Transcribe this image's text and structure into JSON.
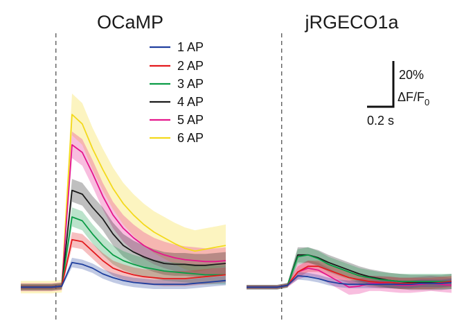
{
  "chart_data": [
    {
      "type": "line",
      "title": "OCaMP",
      "xlabel": "",
      "ylabel": "",
      "x": [
        0,
        0.07,
        0.14,
        0.21,
        0.28,
        0.35,
        0.42,
        0.49,
        0.56,
        0.63,
        0.7,
        0.77,
        0.84,
        0.91,
        0.98,
        1.05,
        1.12,
        1.19,
        1.26,
        1.33,
        1.4
      ],
      "xlim": [
        0,
        1.4
      ],
      "ylim": [
        -5,
        125
      ],
      "stimulus_x": 0.24,
      "series": [
        {
          "name": "1 AP",
          "color": "#1f3f9e",
          "band": 2.5,
          "values": [
            0,
            0,
            0,
            0,
            0.5,
            13,
            12,
            10,
            7,
            5,
            3.5,
            2.5,
            2,
            1.5,
            1.5,
            1.5,
            1.5,
            2,
            2.5,
            3,
            3.5
          ]
        },
        {
          "name": "2 AP",
          "color": "#e3191c",
          "band": 4,
          "values": [
            0,
            0,
            0,
            0,
            0.5,
            25,
            24,
            19,
            14,
            10,
            8,
            6.5,
            5.5,
            5,
            4.5,
            4.5,
            4.5,
            5,
            5.5,
            6,
            6.5
          ]
        },
        {
          "name": "3 AP",
          "color": "#0a9c46",
          "band": 5,
          "values": [
            0,
            0,
            0,
            0,
            0.5,
            37,
            35,
            28,
            22,
            17,
            14,
            12,
            10.5,
            9.5,
            8.5,
            8,
            7.5,
            7,
            6.5,
            6.5,
            6.5
          ]
        },
        {
          "name": "4 AP",
          "color": "#1a1a1a",
          "band": 6,
          "values": [
            0,
            0,
            0,
            0,
            0.5,
            51,
            49,
            42,
            36,
            28,
            22,
            18.5,
            16,
            14,
            12.5,
            12,
            12,
            11.5,
            11.5,
            12,
            12.5
          ]
        },
        {
          "name": "5 AP",
          "color": "#e5168c",
          "band": 7,
          "values": [
            0,
            0,
            0,
            0,
            0.5,
            75,
            71,
            60,
            48,
            38,
            31,
            26,
            22,
            19,
            17,
            15.5,
            14.5,
            14,
            13.5,
            13.5,
            14
          ]
        },
        {
          "name": "6 AP",
          "color": "#f3d91b",
          "band": 11,
          "values": [
            0,
            0,
            0,
            0,
            0.5,
            91,
            86,
            73,
            62,
            52,
            44,
            38,
            33,
            29,
            26,
            23,
            20.5,
            19,
            20,
            21,
            22
          ]
        }
      ],
      "legend": [
        "1 AP",
        "2 AP",
        "3 AP",
        "4 AP",
        "5 AP",
        "6 AP"
      ]
    },
    {
      "type": "line",
      "title": "jRGECO1a",
      "xlabel": "",
      "ylabel": "",
      "x": [
        0,
        0.07,
        0.14,
        0.21,
        0.28,
        0.35,
        0.42,
        0.49,
        0.56,
        0.63,
        0.7,
        0.77,
        0.84,
        0.91,
        0.98,
        1.05,
        1.12,
        1.19,
        1.26,
        1.33,
        1.4
      ],
      "xlim": [
        0,
        1.4
      ],
      "ylim": [
        -5,
        125
      ],
      "stimulus_x": 0.24,
      "series": [
        {
          "name": "1 AP",
          "color": "#1f3f9e",
          "band": 2,
          "values": [
            0,
            0,
            0,
            0,
            1,
            6,
            5.5,
            4.5,
            3,
            2,
            1.5,
            1.5,
            1.5,
            1.5,
            1.5,
            1.5,
            1.5,
            2,
            2,
            2,
            2.5
          ]
        },
        {
          "name": "2 AP",
          "color": "#e3191c",
          "band": 3,
          "values": [
            0,
            0,
            0,
            0,
            1,
            8,
            11,
            11,
            9,
            7,
            5,
            4,
            3,
            2.5,
            2.5,
            2,
            2,
            2,
            2,
            2.5,
            3
          ]
        },
        {
          "name": "3 AP",
          "color": "#0a9c46",
          "band": 4,
          "values": [
            0,
            0,
            0,
            0,
            1,
            16,
            17,
            15,
            12,
            10,
            8,
            6,
            5,
            4,
            3.5,
            3,
            3,
            3,
            3,
            3,
            3
          ]
        },
        {
          "name": "4 AP",
          "color": "#1a1a1a",
          "band": 4,
          "values": [
            0,
            0,
            0,
            0,
            1,
            17,
            17,
            15.5,
            13,
            11,
            9,
            7,
            5.5,
            4.5,
            3.5,
            3,
            2.5,
            2.5,
            2.5,
            2.5,
            3
          ]
        },
        {
          "name": "5 AP",
          "color": "#e5168c",
          "band": 4,
          "values": [
            0,
            0,
            0,
            0,
            1,
            8,
            10,
            9,
            6,
            3,
            0,
            0.5,
            2,
            2,
            1.5,
            1,
            1,
            1.5,
            2,
            1.5,
            1
          ]
        }
      ]
    }
  ],
  "scale_bar": {
    "y_value": "20%",
    "y_label": "ΔF/F",
    "y_label_sub": "0",
    "x_label": "0.2 s"
  }
}
